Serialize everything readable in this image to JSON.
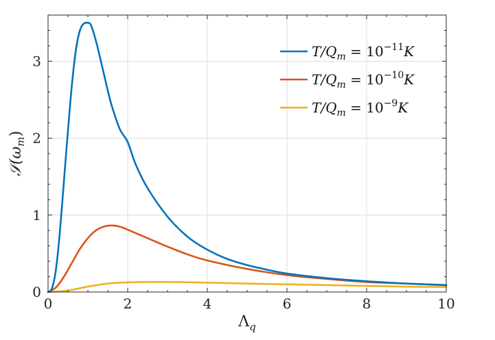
{
  "chart_data": {
    "type": "line",
    "xlabel": "Λq",
    "ylabel": "𝒮(ωm)",
    "xlim": [
      0,
      10
    ],
    "ylim": [
      0,
      3.6
    ],
    "xticks": [
      0,
      2,
      4,
      6,
      8,
      10
    ],
    "yticks": [
      0,
      1,
      2,
      3
    ],
    "grid": true,
    "legend_position": "top-right",
    "series": [
      {
        "name": "T/Qm = 10−11K",
        "color": "#0072BD",
        "x": [
          0,
          0.1,
          0.2,
          0.3,
          0.4,
          0.5,
          0.6,
          0.7,
          0.8,
          0.9,
          1.0,
          1.05,
          1.1,
          1.2,
          1.3,
          1.4,
          1.5,
          1.6,
          1.8,
          2.0,
          2.2,
          2.5,
          3.0,
          3.5,
          4.0,
          4.5,
          5.0,
          5.5,
          6.0,
          7.0,
          8.0,
          9.0,
          10.0
        ],
        "y": [
          0,
          0.05,
          0.3,
          0.8,
          1.45,
          2.1,
          2.7,
          3.15,
          3.4,
          3.49,
          3.5,
          3.49,
          3.44,
          3.27,
          3.06,
          2.84,
          2.62,
          2.42,
          2.12,
          1.95,
          1.66,
          1.35,
          0.98,
          0.72,
          0.55,
          0.43,
          0.35,
          0.29,
          0.24,
          0.18,
          0.14,
          0.11,
          0.09
        ]
      },
      {
        "name": "T/Qm = 10−10K",
        "color": "#D95319",
        "x": [
          0,
          0.2,
          0.4,
          0.6,
          0.8,
          1.0,
          1.2,
          1.4,
          1.6,
          1.8,
          2.0,
          2.5,
          3.0,
          3.5,
          4.0,
          5.0,
          6.0,
          7.0,
          8.0,
          9.0,
          10.0
        ],
        "y": [
          0,
          0.06,
          0.2,
          0.38,
          0.56,
          0.7,
          0.8,
          0.85,
          0.865,
          0.85,
          0.81,
          0.7,
          0.59,
          0.49,
          0.41,
          0.3,
          0.22,
          0.17,
          0.13,
          0.11,
          0.09
        ]
      },
      {
        "name": "T/Qm = 10−9K",
        "color": "#EDB120",
        "x": [
          0,
          0.5,
          1.0,
          1.5,
          2.0,
          2.5,
          3.0,
          3.5,
          4.0,
          5.0,
          6.0,
          7.0,
          8.0,
          9.0,
          10.0
        ],
        "y": [
          0,
          0.02,
          0.07,
          0.11,
          0.125,
          0.13,
          0.13,
          0.127,
          0.122,
          0.11,
          0.1,
          0.09,
          0.08,
          0.07,
          0.065
        ]
      }
    ]
  },
  "legend": {
    "items": [
      {
        "lhs": "T/Q",
        "sub": "m",
        "eq": " = 10",
        "sup": "−11",
        "unit": "K"
      },
      {
        "lhs": "T/Q",
        "sub": "m",
        "eq": " = 10",
        "sup": "−10",
        "unit": "K"
      },
      {
        "lhs": "T/Q",
        "sub": "m",
        "eq": " = 10",
        "sup": "−9",
        "unit": "K"
      }
    ]
  },
  "axes_text": {
    "xlabel_main": "Λ",
    "xlabel_sub": "q",
    "ylabel_main": "𝒮(ω",
    "ylabel_sub": "m",
    "ylabel_close": ")"
  }
}
